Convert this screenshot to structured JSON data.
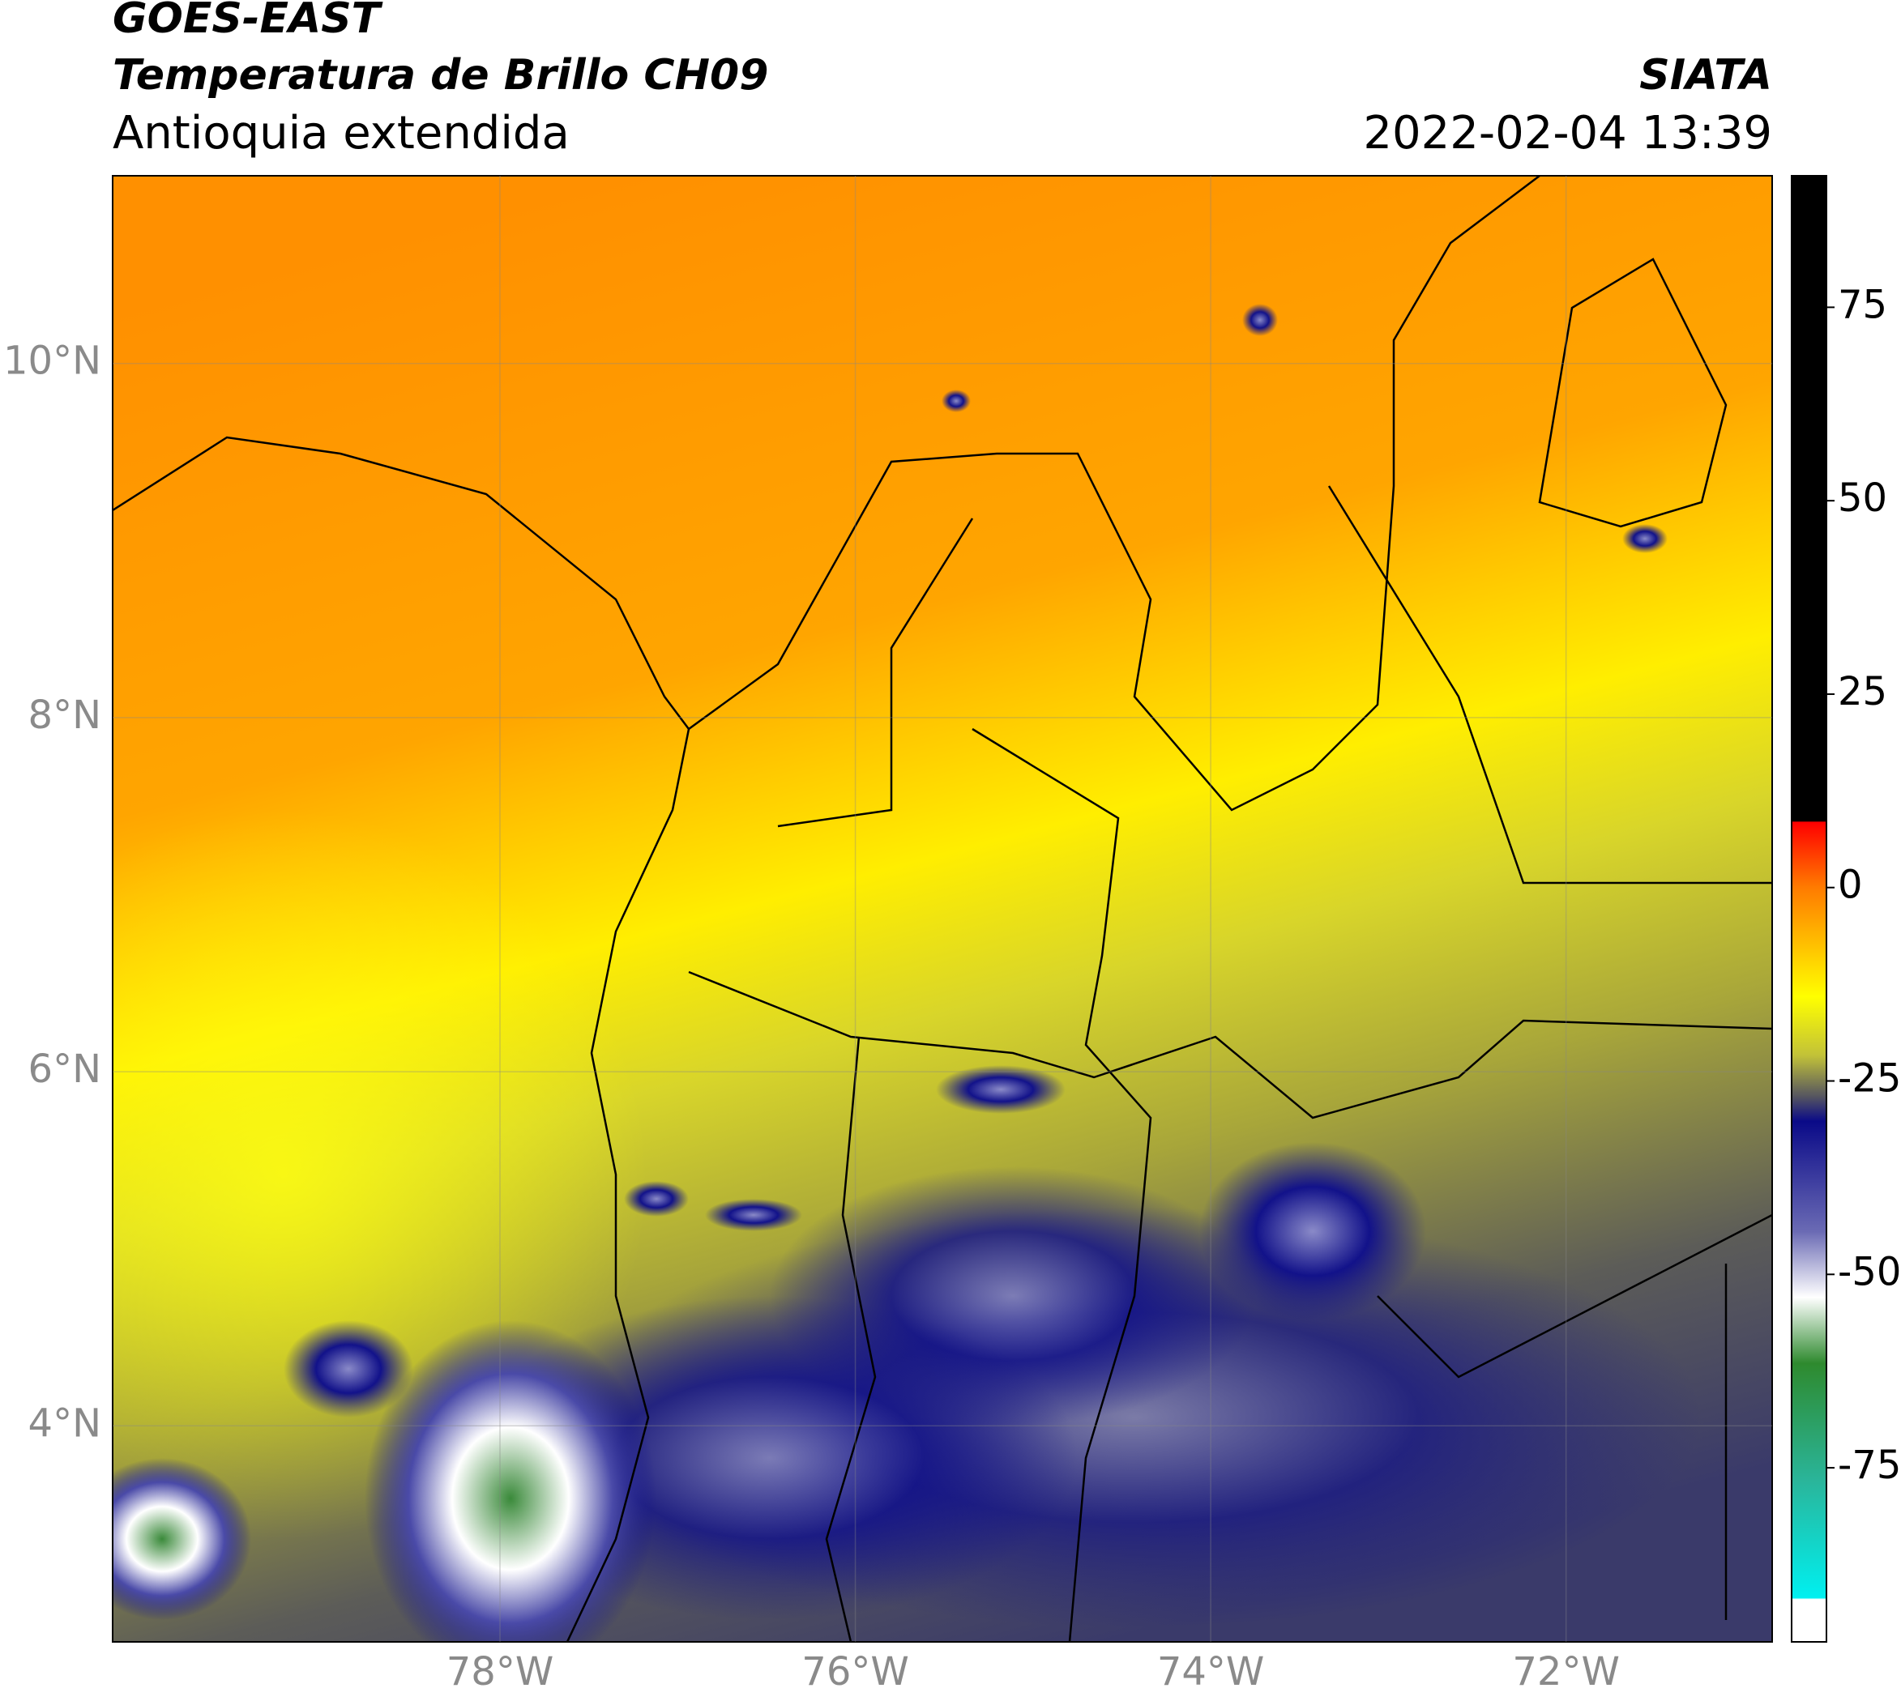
{
  "header": {
    "title": "GOES-EAST",
    "subtitle": "Temperatura de Brillo CH09",
    "region": "Antioquia extendida",
    "source": "SIATA",
    "datetime": "2022-02-04 13:39"
  },
  "map": {
    "lonlim": [
      -80.18,
      -70.84
    ],
    "latlim": [
      2.78,
      11.06
    ],
    "lon_ticks": [
      {
        "value": -78,
        "label": "78°W"
      },
      {
        "value": -76,
        "label": "76°W"
      },
      {
        "value": -74,
        "label": "74°W"
      },
      {
        "value": -72,
        "label": "72°W"
      }
    ],
    "lat_ticks": [
      {
        "value": 4,
        "label": "4°N"
      },
      {
        "value": 6,
        "label": "6°N"
      },
      {
        "value": 8,
        "label": "8°N"
      },
      {
        "value": 10,
        "label": "10°N"
      }
    ],
    "grid": true
  },
  "colorbar": {
    "lim": [
      -97.5,
      92
    ],
    "ticks": [
      75,
      50,
      25,
      0,
      -25,
      -50,
      -75
    ]
  }
}
